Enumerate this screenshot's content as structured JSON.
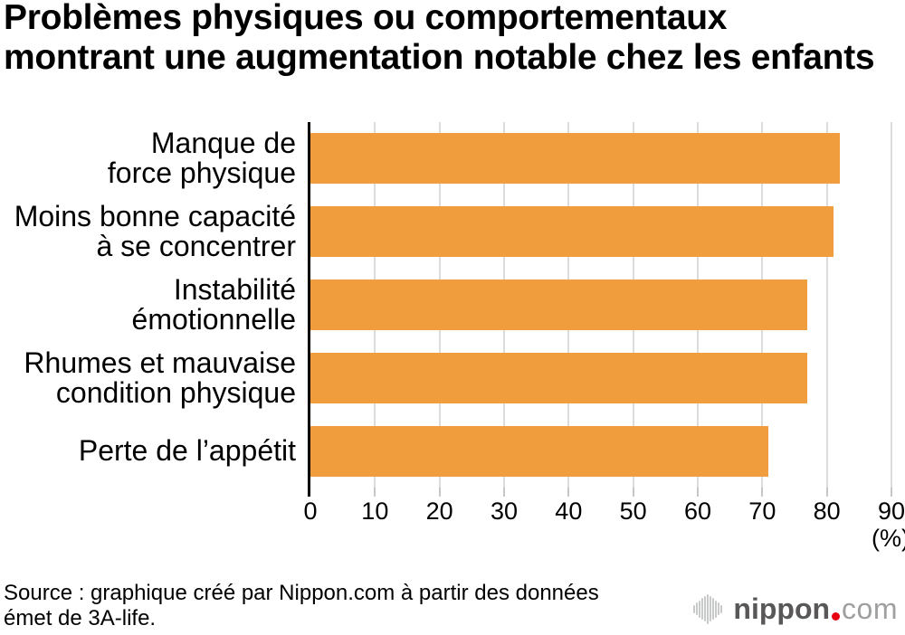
{
  "title": "Problèmes physiques ou comportementaux\nmontrant une augmentation notable chez les enfants",
  "chart_data": {
    "type": "bar",
    "orientation": "horizontal",
    "title": "Problèmes physiques ou comportementaux montrant une augmentation notable chez les enfants",
    "categories": [
      "Manque de\nforce physique",
      "Moins bonne capacité\nà se concentrer",
      "Instabilité\némotionnelle",
      "Rhumes et mauvaise\ncondition physique",
      "Perte de l’appétit"
    ],
    "values": [
      82,
      81,
      77,
      77,
      71
    ],
    "xlim": [
      0,
      90
    ],
    "xticks": [
      0,
      10,
      20,
      30,
      40,
      50,
      60,
      70,
      80,
      90
    ],
    "xlabel_unit": "(%)",
    "grid": true,
    "legend": "none",
    "bar_color": "#F09E3D",
    "gridline_color": "#DCDCDC",
    "tick_color": "#C6C6C6",
    "axis_color": "#000000"
  },
  "source": {
    "text": "Source : graphique créé par Nippon.com à partir des données\német de 3A-life."
  },
  "logo": {
    "name": "nippon",
    "tld": "com",
    "icon": "soundwave-bars-icon",
    "name_color": "#595757",
    "tld_color": "#9EA0A0",
    "dot_color": "#E60012",
    "icon_color": "#C8C9C9"
  }
}
